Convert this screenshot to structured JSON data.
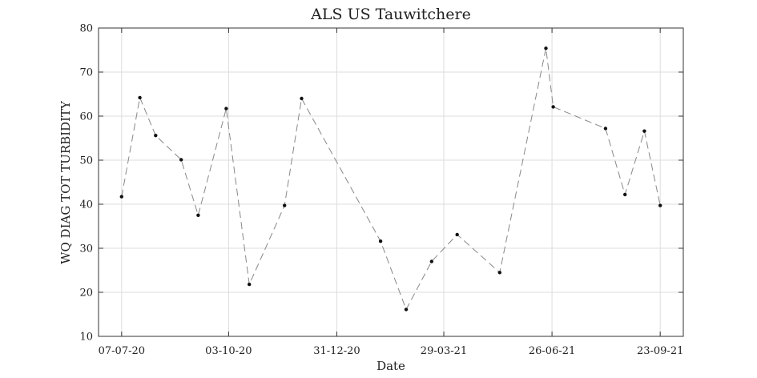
{
  "chart_data": {
    "type": "line",
    "title": "ALS US Tauwitchere",
    "xlabel": "Date",
    "ylabel": "WQ DIAG TOT TURBIDITY",
    "x_tick_labels": [
      "07-07-20",
      "03-10-20",
      "31-12-20",
      "29-03-21",
      "26-06-21",
      "23-09-21"
    ],
    "x_tick_dates": [
      "2020-07-07",
      "2020-10-03",
      "2020-12-31",
      "2021-03-29",
      "2021-06-26",
      "2021-09-23"
    ],
    "xlim": [
      "2020-06-18",
      "2021-10-12"
    ],
    "ylim": [
      10,
      80
    ],
    "yticks": [
      10,
      20,
      30,
      40,
      50,
      60,
      70,
      80
    ],
    "grid": true,
    "series": [
      {
        "name": "",
        "color": "#888888",
        "marker_color": "#111111",
        "line_style": "dashed",
        "x": [
          "2020-07-07",
          "2020-07-22",
          "2020-08-04",
          "2020-08-25",
          "2020-09-08",
          "2020-10-01",
          "2020-10-20",
          "2020-11-18",
          "2020-12-02",
          "2021-02-05",
          "2021-02-26",
          "2021-03-19",
          "2021-04-09",
          "2021-05-14",
          "2021-06-21",
          "2021-06-27",
          "2021-08-09",
          "2021-08-25",
          "2021-09-10",
          "2021-09-23"
        ],
        "y": [
          41.7,
          64.2,
          55.6,
          50.1,
          37.5,
          61.7,
          21.8,
          39.7,
          64.0,
          31.6,
          16.1,
          27.0,
          33.1,
          24.5,
          75.4,
          62.1,
          57.2,
          42.2,
          56.6,
          39.7
        ]
      }
    ]
  }
}
